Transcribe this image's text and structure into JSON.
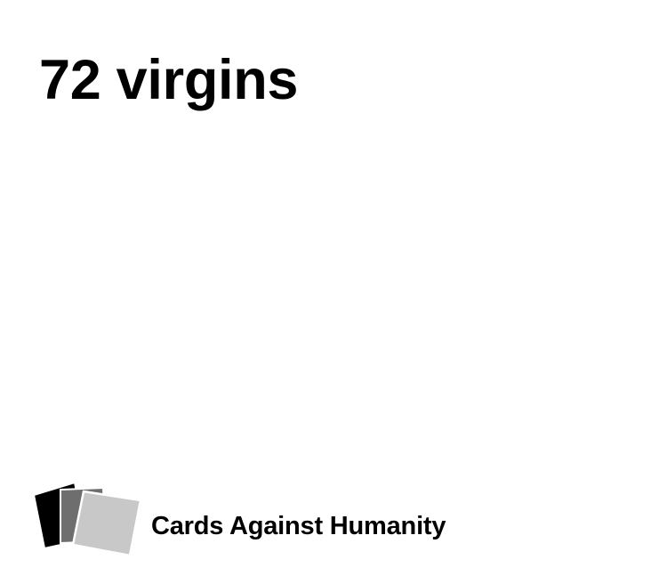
{
  "card": {
    "text": "72 virgins",
    "color": "#ffffff",
    "text_color": "#000000"
  },
  "footer": {
    "brand_name": "Cards Against Humanity",
    "logo_icon": "stacked-cards-icon",
    "logo_colors": [
      "#000000",
      "#6e6e6e",
      "#c8c8c8"
    ]
  }
}
